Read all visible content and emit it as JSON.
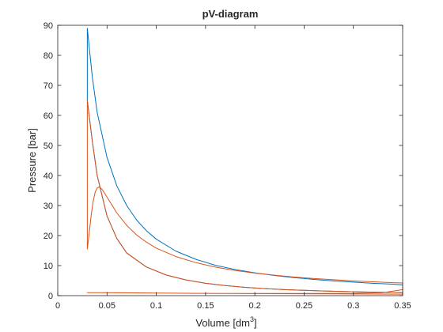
{
  "chart_data": {
    "type": "line",
    "title": "pV-diagram",
    "xlabel": "Volume [dm",
    "xlabel_superscript": "3",
    "xlabel_suffix": "]",
    "ylabel": "Pressure [bar]",
    "xlim": [
      0,
      0.35
    ],
    "ylim": [
      0,
      90
    ],
    "xticks": [
      0,
      0.05,
      0.1,
      0.15,
      0.2,
      0.25,
      0.3,
      0.35
    ],
    "xtick_labels": [
      "0",
      "0.05",
      "0.1",
      "0.15",
      "0.2",
      "0.25",
      "0.3",
      "0.35"
    ],
    "yticks": [
      0,
      10,
      20,
      30,
      40,
      50,
      60,
      70,
      80,
      90
    ],
    "ytick_labels": [
      "0",
      "10",
      "20",
      "30",
      "40",
      "50",
      "60",
      "70",
      "80",
      "90"
    ],
    "grid": false,
    "series": [
      {
        "color": "#0072bd",
        "points": [
          [
            0.35,
            1.0
          ],
          [
            0.33,
            1.11
          ],
          [
            0.31,
            1.23
          ],
          [
            0.29,
            1.37
          ],
          [
            0.27,
            1.55
          ],
          [
            0.25,
            1.76
          ],
          [
            0.23,
            2.02
          ],
          [
            0.21,
            2.35
          ],
          [
            0.19,
            2.78
          ],
          [
            0.17,
            3.35
          ],
          [
            0.15,
            4.12
          ],
          [
            0.13,
            5.22
          ],
          [
            0.11,
            6.87
          ],
          [
            0.09,
            9.52
          ],
          [
            0.07,
            14.2
          ],
          [
            0.06,
            19.0
          ],
          [
            0.05,
            26.5
          ],
          [
            0.04,
            40.0
          ],
          [
            0.035,
            51.6
          ],
          [
            0.03,
            65.0
          ],
          [
            0.03,
            89.0
          ],
          [
            0.03,
            89.0
          ],
          [
            0.035,
            73.0
          ],
          [
            0.04,
            61.0
          ],
          [
            0.05,
            46.0
          ],
          [
            0.06,
            36.5
          ],
          [
            0.07,
            30.0
          ],
          [
            0.08,
            25.2
          ],
          [
            0.09,
            21.6
          ],
          [
            0.1,
            18.8
          ],
          [
            0.12,
            14.8
          ],
          [
            0.14,
            12.1
          ],
          [
            0.16,
            10.1
          ],
          [
            0.18,
            8.7
          ],
          [
            0.2,
            7.6
          ],
          [
            0.22,
            6.7
          ],
          [
            0.24,
            6.0
          ],
          [
            0.26,
            5.4
          ],
          [
            0.28,
            4.9
          ],
          [
            0.3,
            4.5
          ],
          [
            0.32,
            4.1
          ],
          [
            0.34,
            3.8
          ],
          [
            0.35,
            3.6
          ],
          [
            0.35,
            1.0
          ]
        ]
      },
      {
        "color": "#d95319",
        "points": [
          [
            0.35,
            1.0
          ],
          [
            0.33,
            1.11
          ],
          [
            0.31,
            1.23
          ],
          [
            0.29,
            1.37
          ],
          [
            0.27,
            1.55
          ],
          [
            0.25,
            1.76
          ],
          [
            0.23,
            2.02
          ],
          [
            0.21,
            2.35
          ],
          [
            0.19,
            2.78
          ],
          [
            0.17,
            3.35
          ],
          [
            0.15,
            4.12
          ],
          [
            0.13,
            5.22
          ],
          [
            0.11,
            6.87
          ],
          [
            0.09,
            9.52
          ],
          [
            0.07,
            14.2
          ],
          [
            0.06,
            19.0
          ],
          [
            0.05,
            26.5
          ],
          [
            0.04,
            40.0
          ],
          [
            0.035,
            51.6
          ],
          [
            0.03,
            65.0
          ],
          [
            0.03,
            15.5
          ],
          [
            0.032,
            21.0
          ],
          [
            0.034,
            27.0
          ],
          [
            0.036,
            31.5
          ],
          [
            0.038,
            34.5
          ],
          [
            0.04,
            35.8
          ],
          [
            0.042,
            36.2
          ],
          [
            0.045,
            35.4
          ],
          [
            0.05,
            32.8
          ],
          [
            0.06,
            27.5
          ],
          [
            0.07,
            23.4
          ],
          [
            0.08,
            20.2
          ],
          [
            0.09,
            17.8
          ],
          [
            0.1,
            15.8
          ],
          [
            0.12,
            13.0
          ],
          [
            0.14,
            11.0
          ],
          [
            0.16,
            9.5
          ],
          [
            0.18,
            8.4
          ],
          [
            0.2,
            7.5
          ],
          [
            0.22,
            6.8
          ],
          [
            0.24,
            6.2
          ],
          [
            0.26,
            5.7
          ],
          [
            0.28,
            5.3
          ],
          [
            0.3,
            4.9
          ],
          [
            0.32,
            4.6
          ],
          [
            0.34,
            4.3
          ],
          [
            0.35,
            4.2
          ],
          [
            0.35,
            2.0
          ],
          [
            0.33,
            1.0
          ],
          [
            0.3,
            0.75
          ],
          [
            0.25,
            0.72
          ],
          [
            0.2,
            0.72
          ],
          [
            0.15,
            0.75
          ],
          [
            0.1,
            0.85
          ],
          [
            0.06,
            1.0
          ],
          [
            0.03,
            1.0
          ],
          [
            0.06,
            0.95
          ],
          [
            0.1,
            0.85
          ],
          [
            0.15,
            0.75
          ],
          [
            0.2,
            0.7
          ],
          [
            0.25,
            0.62
          ],
          [
            0.3,
            0.55
          ],
          [
            0.35,
            0.5
          ]
        ]
      }
    ]
  }
}
